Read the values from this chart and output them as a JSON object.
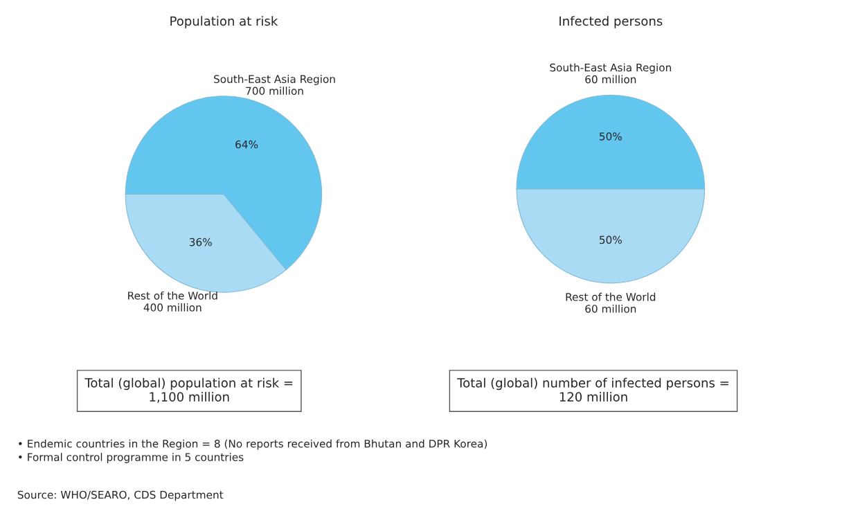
{
  "chart_data": [
    {
      "type": "pie",
      "title": "Population at risk",
      "categories": [
        "South-East Asia Region\n700 million",
        "Rest of the World\n400 million"
      ],
      "values": [
        64,
        36
      ],
      "value_labels": [
        "64%",
        "36%"
      ],
      "colors": [
        "#62c6ef",
        "#a9dcf4"
      ],
      "legend": false,
      "annotations": [
        "Total (global) population at risk =\n1,100 million",
        "• Endemic countries in the Region = 8 (No reports received from Bhutan and DPR Korea)\n• Formal control programme in 5 countries",
        "Source: WHO/SEARO, CDS Department"
      ]
    },
    {
      "type": "pie",
      "title": "Infected persons",
      "categories": [
        "South-East Asia Region\n60 million",
        "Rest of the World\n60 million"
      ],
      "values": [
        50,
        50
      ],
      "value_labels": [
        "50%",
        "50%"
      ],
      "colors": [
        "#62c6ef",
        "#a9dcf4"
      ],
      "legend": false,
      "annotations": [
        "Total (global) number of infected persons =\n120 million"
      ]
    }
  ]
}
